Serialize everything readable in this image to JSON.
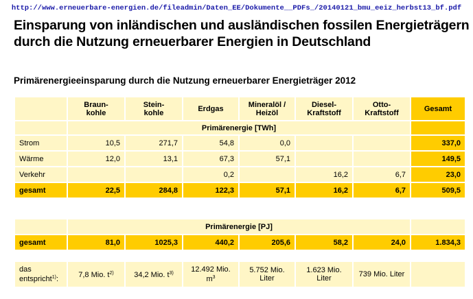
{
  "source_url": "http://www.erneuerbare-energien.de/fileadmin/Daten_EE/Dokumente__PDFs_/20140121_bmu_eeiz_herbst13_bf.pdf",
  "title_line1": "Einsparung von inländischen und ausländischen fossilen Energieträgern",
  "title_line2": "durch die Nutzung erneuerbarer Energien in Deutschland",
  "subtitle": "Primärenergieeinsparung durch die Nutzung erneuerbarer Energieträger 2012",
  "columns": {
    "braunkohle": [
      "Braun-",
      "kohle"
    ],
    "steinkohle": [
      "Stein-",
      "kohle"
    ],
    "erdgas": "Erdgas",
    "mineraloel": [
      "Mineralöl /",
      "Heizöl"
    ],
    "diesel": [
      "Diesel-",
      "Kraftstoff"
    ],
    "otto": [
      "Otto-",
      "Kraftstoff"
    ],
    "gesamt": "Gesamt"
  },
  "unit_twh": "Primärenergie [TWh]",
  "rows_twh": [
    {
      "label": "Strom",
      "values": [
        "10,5",
        "271,7",
        "54,8",
        "0,0",
        "",
        "",
        "337,0"
      ]
    },
    {
      "label": "Wärme",
      "values": [
        "12,0",
        "13,1",
        "67,3",
        "57,1",
        "",
        "",
        "149,5"
      ]
    },
    {
      "label": "Verkehr",
      "values": [
        "",
        "",
        "0,2",
        "",
        "16,2",
        "6,7",
        "23,0"
      ]
    }
  ],
  "total_twh": {
    "label": "gesamt",
    "values": [
      "22,5",
      "284,8",
      "122,3",
      "57,1",
      "16,2",
      "6,7",
      "509,5"
    ]
  },
  "unit_pj": "Primärenergie [PJ]",
  "total_pj": {
    "label": "gesamt",
    "values": [
      "81,0",
      "1025,3",
      "440,2",
      "205,6",
      "58,2",
      "24,0",
      "1.834,3"
    ]
  },
  "equivalent": {
    "label_line1": "das",
    "label_line2": "entspricht",
    "label_sup": "1)",
    "label_end": ":",
    "braunkohle": {
      "text": "7,8 Mio. t",
      "sup": "2)"
    },
    "steinkohle": {
      "text": "34,2 Mio. t",
      "sup": "3)"
    },
    "erdgas": {
      "text": "12.492 Mio. m",
      "sup": "3"
    },
    "mineraloel": [
      "5.752 Mio.",
      "Liter"
    ],
    "diesel": [
      "1.623 Mio.",
      "Liter"
    ],
    "otto": "739 Mio. Liter",
    "gesamt": ""
  },
  "colors": {
    "light": "#fff6c6",
    "gold": "#ffcc00",
    "url": "#1a1aa8"
  }
}
